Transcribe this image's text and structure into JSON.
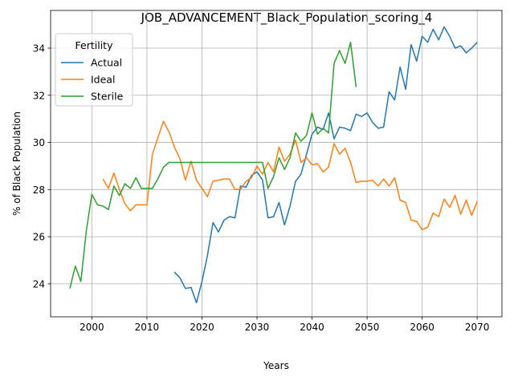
{
  "chart_data": {
    "type": "line",
    "title": "JOB_ADVANCEMENT_Black_Population_scoring_4",
    "xlabel": "Years",
    "ylabel": "% of Black Population",
    "xlim": [
      1992.5,
      2074.5
    ],
    "ylim": [
      22.6,
      35.6
    ],
    "xticks": [
      2000,
      2010,
      2020,
      2030,
      2040,
      2050,
      2060,
      2070
    ],
    "yticks": [
      24,
      26,
      28,
      30,
      32,
      34
    ],
    "grid": true,
    "legend": {
      "title": "Fertility",
      "location": "upper-left"
    },
    "series": [
      {
        "name": "Actual",
        "color": "#1f77b4",
        "x": [
          2015,
          2016,
          2017,
          2018,
          2019,
          2020,
          2021,
          2022,
          2023,
          2024,
          2025,
          2026,
          2027,
          2028,
          2029,
          2030,
          2031,
          2032,
          2033,
          2034,
          2035,
          2036,
          2037,
          2038,
          2039,
          2040,
          2041,
          2042,
          2043,
          2044,
          2045,
          2046,
          2047,
          2048,
          2049,
          2050,
          2051,
          2052,
          2053,
          2054,
          2055,
          2056,
          2057,
          2058,
          2059,
          2060,
          2061,
          2062,
          2063,
          2064,
          2065,
          2066,
          2067,
          2068,
          2069,
          2070
        ],
        "y": [
          24.5,
          24.25,
          23.8,
          23.85,
          23.2,
          24.1,
          25.2,
          26.6,
          26.2,
          26.7,
          26.85,
          26.8,
          28.15,
          28.1,
          28.6,
          28.75,
          28.4,
          26.8,
          26.85,
          27.45,
          26.5,
          27.3,
          28.35,
          28.65,
          29.5,
          30.35,
          30.65,
          30.55,
          31.25,
          30.15,
          30.65,
          30.6,
          30.5,
          31.2,
          31.1,
          31.25,
          30.85,
          30.6,
          30.65,
          32.15,
          31.8,
          33.2,
          32.25,
          34.15,
          33.45,
          34.5,
          34.25,
          34.8,
          34.35,
          34.9,
          34.5,
          34.0,
          34.1,
          33.8,
          34.0,
          34.25
        ]
      },
      {
        "name": "Ideal",
        "color": "#ff7f0e",
        "x": [
          2002,
          2003,
          2004,
          2005,
          2006,
          2007,
          2008,
          2009,
          2010,
          2011,
          2012,
          2013,
          2014,
          2015,
          2016,
          2017,
          2018,
          2019,
          2020,
          2021,
          2022,
          2023,
          2024,
          2025,
          2026,
          2027,
          2028,
          2029,
          2030,
          2031,
          2032,
          2033,
          2034,
          2035,
          2036,
          2037,
          2038,
          2039,
          2040,
          2041,
          2042,
          2043,
          2044,
          2045,
          2046,
          2047,
          2048,
          2049,
          2050,
          2051,
          2052,
          2053,
          2054,
          2055,
          2056,
          2057,
          2058,
          2059,
          2060,
          2061,
          2062,
          2063,
          2064,
          2065,
          2066,
          2067,
          2068,
          2069,
          2070
        ],
        "y": [
          28.45,
          28.05,
          28.7,
          28.0,
          27.4,
          27.1,
          27.35,
          27.35,
          27.35,
          29.5,
          30.2,
          30.9,
          30.45,
          29.8,
          29.3,
          28.4,
          29.2,
          28.4,
          28.05,
          27.7,
          28.35,
          28.4,
          28.45,
          28.45,
          28.0,
          28.0,
          28.35,
          28.5,
          29.0,
          28.65,
          29.15,
          28.75,
          29.8,
          29.2,
          29.5,
          30.1,
          29.15,
          29.35,
          29.05,
          29.1,
          28.75,
          28.95,
          29.95,
          29.5,
          29.75,
          29.15,
          28.3,
          28.35,
          28.35,
          28.4,
          28.15,
          28.45,
          28.15,
          28.5,
          27.55,
          27.45,
          26.7,
          26.65,
          26.3,
          26.4,
          27.0,
          26.85,
          27.6,
          27.25,
          27.75,
          26.95,
          27.55,
          26.9,
          27.5
        ]
      },
      {
        "name": "Sterile",
        "color": "#2ca02c",
        "x": [
          1996,
          1997,
          1998,
          1999,
          2000,
          2001,
          2002,
          2003,
          2004,
          2005,
          2006,
          2007,
          2008,
          2009,
          2010,
          2011,
          2012,
          2013,
          2014,
          2015,
          2016,
          2017,
          2018,
          2019,
          2020,
          2021,
          2022,
          2023,
          2024,
          2025,
          2026,
          2027,
          2028,
          2029,
          2030,
          2031,
          2032,
          2033,
          2034,
          2035,
          2036,
          2037,
          2038,
          2039,
          2040,
          2041,
          2042,
          2043,
          2044,
          2045,
          2046,
          2047,
          2048
        ],
        "y": [
          23.8,
          24.75,
          24.1,
          26.25,
          27.8,
          27.35,
          27.3,
          27.15,
          28.15,
          27.75,
          28.25,
          28.05,
          28.5,
          28.05,
          28.05,
          28.05,
          28.45,
          28.95,
          29.15,
          29.15,
          29.15,
          29.15,
          29.15,
          29.15,
          29.15,
          29.15,
          29.15,
          29.15,
          29.15,
          29.15,
          29.15,
          29.15,
          29.15,
          29.15,
          29.15,
          29.15,
          28.05,
          28.55,
          29.35,
          28.85,
          29.35,
          30.4,
          30.05,
          30.3,
          31.25,
          30.35,
          30.6,
          30.4,
          33.35,
          33.9,
          33.35,
          34.25,
          32.35
        ]
      }
    ]
  }
}
